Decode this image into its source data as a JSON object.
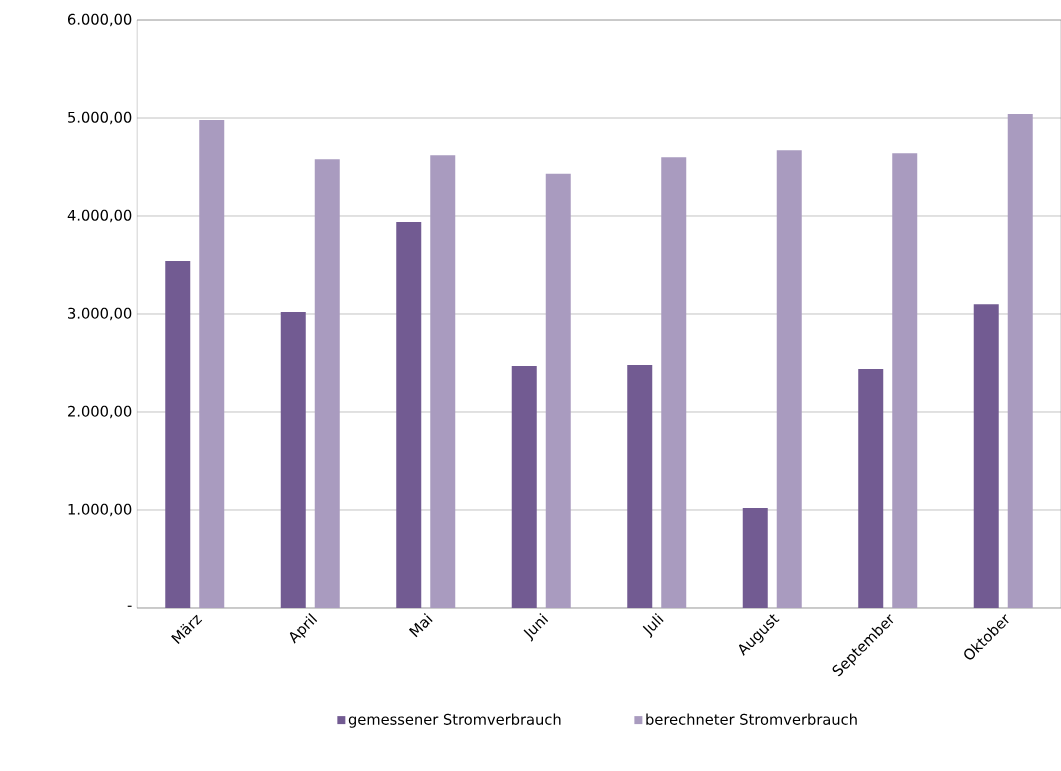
{
  "chart_data": {
    "type": "bar",
    "categories": [
      "März",
      "April",
      "Mai",
      "Juni",
      "Juli",
      "August",
      "September",
      "Oktober"
    ],
    "series": [
      {
        "name": "gemessener Stromverbrauch",
        "color": "#725b92",
        "values": [
          3540,
          3020,
          3940,
          2470,
          2480,
          1020,
          2440,
          3100
        ]
      },
      {
        "name": "berechneter Stromverbrauch",
        "color": "#a99bbf",
        "values": [
          4980,
          4580,
          4620,
          4430,
          4600,
          4670,
          4640,
          5040
        ]
      }
    ],
    "ylim": [
      0,
      6000
    ],
    "yticks": [
      {
        "value": 0,
        "label": "-"
      },
      {
        "value": 1000,
        "label": "1.000,00"
      },
      {
        "value": 2000,
        "label": "2.000,00"
      },
      {
        "value": 3000,
        "label": "3.000,00"
      },
      {
        "value": 4000,
        "label": "4.000,00"
      },
      {
        "value": 5000,
        "label": "5.000,00"
      },
      {
        "value": 6000,
        "label": "6.000,00"
      }
    ],
    "grid": "y",
    "legend": "bottom"
  }
}
